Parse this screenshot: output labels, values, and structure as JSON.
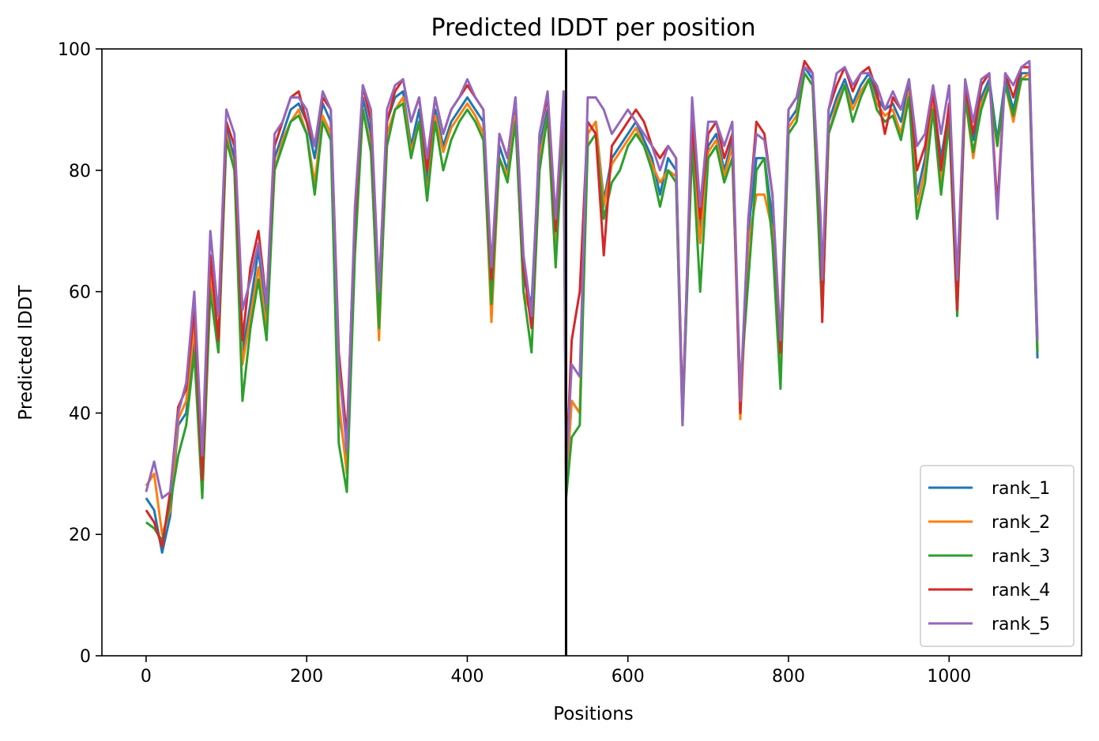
{
  "chart_data": {
    "type": "line",
    "title": "Predicted lDDT per position",
    "xlabel": "Positions",
    "ylabel": "Predicted lDDT",
    "xlim": [
      -55,
      1165
    ],
    "ylim": [
      0,
      100
    ],
    "xticks": [
      0,
      200,
      400,
      600,
      800,
      1000
    ],
    "yticks": [
      0,
      20,
      40,
      60,
      80,
      100
    ],
    "grid": false,
    "legend_position": "bottom-right",
    "vline_x": 523,
    "vline_color": "#000000",
    "x": [
      0,
      10,
      20,
      30,
      40,
      50,
      60,
      70,
      80,
      90,
      100,
      110,
      120,
      130,
      140,
      150,
      160,
      170,
      180,
      190,
      200,
      210,
      220,
      230,
      240,
      250,
      260,
      270,
      280,
      290,
      300,
      310,
      320,
      330,
      340,
      350,
      360,
      370,
      380,
      390,
      400,
      410,
      420,
      430,
      440,
      450,
      460,
      470,
      480,
      490,
      500,
      510,
      520,
      523,
      530,
      540,
      550,
      560,
      570,
      580,
      590,
      600,
      610,
      620,
      630,
      640,
      650,
      660,
      668,
      680,
      690,
      700,
      710,
      720,
      730,
      740,
      750,
      760,
      770,
      780,
      790,
      800,
      810,
      820,
      830,
      840,
      842,
      850,
      860,
      870,
      880,
      890,
      900,
      910,
      920,
      930,
      940,
      950,
      960,
      970,
      980,
      990,
      1000,
      1010,
      1020,
      1030,
      1040,
      1050,
      1060,
      1070,
      1080,
      1090,
      1100,
      1110
    ],
    "series": [
      {
        "name": "rank_1",
        "color": "#1f77b4",
        "values": [
          26,
          24,
          17,
          23,
          38,
          40,
          52,
          30,
          62,
          52,
          87,
          82,
          50,
          58,
          67,
          55,
          82,
          86,
          90,
          91,
          88,
          82,
          91,
          88,
          40,
          32,
          70,
          92,
          86,
          55,
          88,
          92,
          93,
          84,
          90,
          78,
          90,
          84,
          88,
          90,
          92,
          90,
          88,
          58,
          84,
          80,
          90,
          62,
          58,
          84,
          90,
          68,
          90,
          28,
          42,
          40,
          86,
          88,
          75,
          82,
          84,
          86,
          88,
          85,
          82,
          76,
          82,
          80,
          40,
          86,
          70,
          84,
          86,
          80,
          85,
          40,
          70,
          82,
          82,
          72,
          45,
          88,
          90,
          97,
          95,
          70,
          56,
          88,
          92,
          95,
          91,
          94,
          96,
          92,
          90,
          91,
          88,
          94,
          76,
          82,
          92,
          82,
          90,
          60,
          93,
          85,
          92,
          95,
          85,
          95,
          90,
          96,
          96,
          49
        ]
      },
      {
        "name": "rank_2",
        "color": "#ff7f0e",
        "values": [
          28,
          30,
          20,
          24,
          39,
          42,
          54,
          32,
          64,
          50,
          86,
          80,
          48,
          56,
          64,
          54,
          80,
          85,
          88,
          90,
          86,
          78,
          89,
          86,
          42,
          30,
          68,
          90,
          84,
          52,
          86,
          90,
          92,
          83,
          88,
          76,
          89,
          83,
          87,
          89,
          91,
          89,
          86,
          55,
          82,
          79,
          89,
          60,
          56,
          82,
          89,
          66,
          90,
          28,
          42,
          40,
          86,
          88,
          74,
          81,
          83,
          85,
          87,
          84,
          81,
          78,
          80,
          79,
          39,
          85,
          68,
          83,
          85,
          79,
          84,
          39,
          68,
          76,
          76,
          70,
          46,
          87,
          89,
          96,
          94,
          68,
          56,
          86,
          91,
          94,
          90,
          93,
          95,
          91,
          89,
          90,
          86,
          93,
          74,
          80,
          91,
          78,
          89,
          58,
          92,
          82,
          91,
          94,
          84,
          94,
          88,
          95,
          96,
          50
        ]
      },
      {
        "name": "rank_3",
        "color": "#2ca02c",
        "values": [
          22,
          21,
          19,
          25,
          33,
          38,
          50,
          26,
          60,
          50,
          85,
          80,
          42,
          54,
          62,
          52,
          80,
          84,
          88,
          89,
          86,
          76,
          88,
          85,
          35,
          27,
          66,
          90,
          83,
          54,
          84,
          90,
          91,
          82,
          88,
          75,
          88,
          80,
          85,
          88,
          90,
          88,
          85,
          58,
          82,
          78,
          88,
          60,
          50,
          80,
          89,
          64,
          88,
          26,
          36,
          38,
          84,
          86,
          72,
          78,
          80,
          84,
          86,
          84,
          80,
          74,
          80,
          78,
          38,
          84,
          60,
          82,
          84,
          78,
          82,
          44,
          62,
          80,
          82,
          68,
          44,
          86,
          88,
          96,
          94,
          62,
          56,
          86,
          90,
          94,
          88,
          92,
          95,
          90,
          88,
          89,
          85,
          92,
          72,
          78,
          90,
          76,
          88,
          56,
          92,
          83,
          90,
          94,
          84,
          94,
          89,
          95,
          95,
          50
        ]
      },
      {
        "name": "rank_4",
        "color": "#d62728",
        "values": [
          24,
          22,
          18,
          27,
          41,
          44,
          57,
          29,
          66,
          52,
          88,
          84,
          52,
          64,
          70,
          58,
          84,
          88,
          92,
          93,
          88,
          84,
          92,
          90,
          50,
          36,
          72,
          94,
          88,
          60,
          88,
          93,
          95,
          88,
          92,
          80,
          92,
          86,
          90,
          92,
          94,
          92,
          90,
          62,
          86,
          82,
          92,
          64,
          54,
          86,
          92,
          70,
          92,
          30,
          52,
          60,
          88,
          86,
          66,
          84,
          86,
          88,
          90,
          88,
          84,
          82,
          84,
          82,
          40,
          88,
          72,
          86,
          88,
          82,
          86,
          40,
          72,
          88,
          86,
          76,
          50,
          90,
          92,
          98,
          96,
          70,
          55,
          90,
          94,
          97,
          93,
          96,
          97,
          93,
          86,
          92,
          90,
          95,
          80,
          84,
          93,
          80,
          91,
          57,
          94,
          86,
          94,
          96,
          74,
          96,
          92,
          97,
          97,
          52
        ]
      },
      {
        "name": "rank_5",
        "color": "#9467bd",
        "values": [
          27,
          32,
          26,
          27,
          40,
          45,
          60,
          33,
          70,
          56,
          90,
          86,
          57,
          62,
          68,
          58,
          86,
          88,
          92,
          92,
          90,
          84,
          93,
          90,
          48,
          34,
          74,
          94,
          90,
          60,
          90,
          94,
          95,
          88,
          92,
          82,
          92,
          86,
          90,
          92,
          95,
          92,
          90,
          64,
          86,
          82,
          92,
          66,
          56,
          86,
          93,
          72,
          93,
          30,
          48,
          46,
          92,
          92,
          90,
          86,
          88,
          90,
          88,
          86,
          84,
          80,
          84,
          82,
          38,
          92,
          74,
          88,
          88,
          84,
          88,
          42,
          72,
          86,
          85,
          76,
          52,
          90,
          92,
          97,
          96,
          72,
          62,
          90,
          96,
          97,
          94,
          96,
          96,
          94,
          90,
          93,
          90,
          95,
          84,
          86,
          94,
          86,
          94,
          62,
          95,
          88,
          95,
          96,
          72,
          96,
          94,
          97,
          98,
          52
        ]
      }
    ]
  }
}
